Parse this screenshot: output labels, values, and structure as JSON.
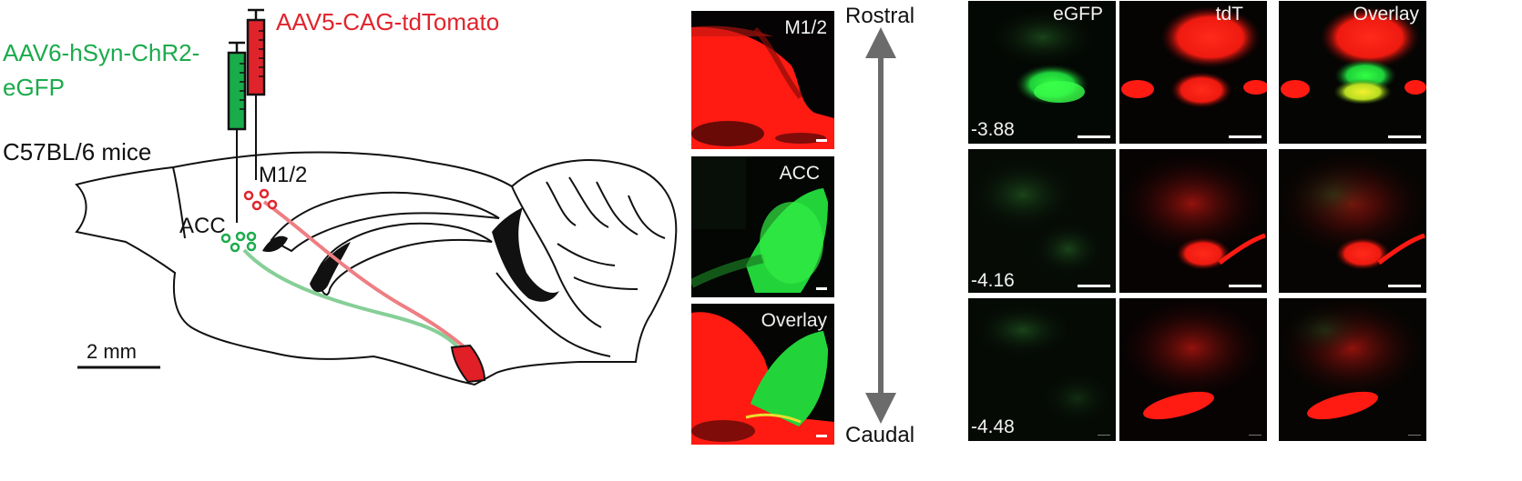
{
  "labels": {
    "virus_tdtomato": "AAV5-CAG-tdTomato",
    "virus_chr2_line1": "AAV6-hSyn-ChR2-",
    "virus_chr2_line2": "eGFP",
    "mouse": "C57BL/6 mice",
    "region_m12": "M1/2",
    "region_acc": "ACC",
    "scale": "2 mm"
  },
  "axis": {
    "top": "Rostral",
    "bottom": "Caudal"
  },
  "injection_panels": [
    "M1/2",
    "ACC",
    "Overlay"
  ],
  "grid": {
    "columns": [
      "eGFP",
      "tdT",
      "Overlay"
    ],
    "rows": [
      "-3.88",
      "-4.16",
      "-4.48"
    ]
  },
  "colors": {
    "green": "#1aab4b",
    "red": "#e0242c",
    "fluor_green": "#22d43a",
    "fluor_red": "#ff1a12",
    "axis_gray": "#6b6b6b"
  }
}
